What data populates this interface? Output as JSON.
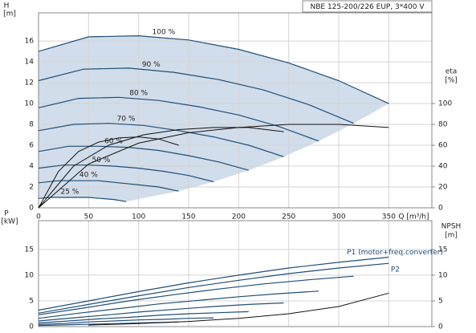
{
  "chart_data": [
    {
      "type": "line",
      "title": "NBE 125-200/226 EUP, 3*400 V",
      "xlabel": "Q [m³/h]",
      "ylabel": "H",
      "ylabel_unit": "[m]",
      "y2label": "eta",
      "y2label_unit": "[%]",
      "xlim": [
        0,
        393
      ],
      "ylim": [
        0,
        18.7
      ],
      "y2lim": [
        0,
        187
      ],
      "xticks": [
        0,
        50,
        100,
        150,
        200,
        250,
        300,
        350
      ],
      "yticks": [
        0,
        2,
        4,
        6,
        8,
        10,
        12,
        14,
        16
      ],
      "y2ticks": [
        0,
        20,
        40,
        60,
        80,
        100
      ],
      "grid": true,
      "range_color": "#c9d7e6",
      "series": [
        {
          "name": "100 %",
          "color": "#1f4e79",
          "x": [
            0,
            50,
            100,
            150,
            200,
            250,
            300,
            350
          ],
          "values": [
            15.0,
            16.4,
            16.5,
            16.1,
            15.2,
            13.9,
            12.2,
            10.0
          ]
        },
        {
          "name": "90 %",
          "color": "#1f4e79",
          "x": [
            0,
            45,
            90,
            135,
            180,
            225,
            270,
            315
          ],
          "values": [
            12.2,
            13.3,
            13.4,
            13.0,
            12.3,
            11.3,
            9.9,
            8.1
          ]
        },
        {
          "name": "80 %",
          "color": "#1f4e79",
          "x": [
            0,
            40,
            80,
            120,
            160,
            200,
            240,
            280
          ],
          "values": [
            9.6,
            10.5,
            10.6,
            10.3,
            9.7,
            8.9,
            7.8,
            6.4
          ]
        },
        {
          "name": "70 %",
          "color": "#1f4e79",
          "x": [
            0,
            35,
            70,
            105,
            140,
            175,
            210,
            245
          ],
          "values": [
            7.4,
            8.0,
            8.1,
            7.9,
            7.4,
            6.8,
            6.0,
            4.9
          ]
        },
        {
          "name": "60 %",
          "color": "#1f4e79",
          "x": [
            0,
            30,
            60,
            90,
            120,
            150,
            180,
            210
          ],
          "values": [
            5.4,
            5.9,
            5.9,
            5.8,
            5.5,
            5.0,
            4.4,
            3.6
          ]
        },
        {
          "name": "50 %",
          "color": "#1f4e79",
          "x": [
            0,
            25,
            50,
            75,
            100,
            125,
            150,
            175
          ],
          "values": [
            3.8,
            4.1,
            4.1,
            4.0,
            3.8,
            3.5,
            3.1,
            2.5
          ]
        },
        {
          "name": "40 %",
          "color": "#1f4e79",
          "x": [
            0,
            20,
            40,
            60,
            80,
            100,
            120,
            140
          ],
          "values": [
            2.4,
            2.6,
            2.6,
            2.6,
            2.4,
            2.2,
            2.0,
            1.6
          ]
        },
        {
          "name": "25 %",
          "color": "#1f4e79",
          "x": [
            0,
            12.5,
            25,
            37.5,
            50,
            62.5,
            75,
            87.5
          ],
          "values": [
            0.9,
            1.0,
            1.0,
            1.0,
            1.0,
            0.9,
            0.8,
            0.6
          ]
        },
        {
          "color": "#111111",
          "axis": "y2",
          "x": [
            0,
            50,
            100,
            150,
            200,
            250,
            300,
            350
          ],
          "values": [
            0,
            42,
            62,
            72,
            77,
            80,
            80,
            77
          ]
        },
        {
          "color": "#111111",
          "axis": "y2",
          "x": [
            0,
            35,
            70,
            105,
            140,
            175,
            210,
            245
          ],
          "values": [
            0,
            40,
            60,
            70,
            75,
            77,
            77,
            73
          ]
        },
        {
          "color": "#111111",
          "axis": "y2",
          "x": [
            0,
            20,
            40,
            60,
            80,
            100,
            120,
            140
          ],
          "values": [
            0,
            35,
            54,
            63,
            67,
            68,
            66,
            60
          ]
        }
      ]
    },
    {
      "type": "line",
      "ylabel": "P",
      "ylabel_unit": "[kW]",
      "y2label": "NPSH",
      "y2label_unit": "[m]",
      "xlim": [
        0,
        393
      ],
      "ylim": [
        0,
        20.6
      ],
      "y2lim": [
        0,
        20.6
      ],
      "xticks": [
        0,
        50,
        100,
        150,
        200,
        250,
        300,
        350
      ],
      "yticks": [
        0,
        5,
        10,
        15
      ],
      "y2ticks": [
        0,
        5,
        10,
        15
      ],
      "grid": true,
      "series": [
        {
          "name": "P1 (motor+freq.converter)",
          "color": "#1f4e79",
          "x": [
            0,
            50,
            100,
            150,
            200,
            250,
            300,
            350
          ],
          "values": [
            3.2,
            5.0,
            6.8,
            8.5,
            10.0,
            11.4,
            12.5,
            13.5
          ]
        },
        {
          "name": "P2",
          "color": "#1f4e79",
          "x": [
            0,
            50,
            100,
            150,
            200,
            250,
            300,
            350
          ],
          "values": [
            2.6,
            4.3,
            6.0,
            7.6,
            9.0,
            10.3,
            11.4,
            12.3
          ]
        },
        {
          "color": "#1f4e79",
          "x": [
            0,
            45,
            90,
            135,
            180,
            225,
            270,
            315
          ],
          "values": [
            2.3,
            3.6,
            5.0,
            6.2,
            7.3,
            8.3,
            9.1,
            9.8
          ]
        },
        {
          "color": "#1f4e79",
          "x": [
            0,
            40,
            80,
            120,
            160,
            200,
            240,
            280
          ],
          "values": [
            1.6,
            2.6,
            3.5,
            4.4,
            5.1,
            5.8,
            6.4,
            6.9
          ]
        },
        {
          "color": "#1f4e79",
          "x": [
            0,
            35,
            70,
            105,
            140,
            175,
            210,
            245
          ],
          "values": [
            1.1,
            1.7,
            2.3,
            2.9,
            3.4,
            3.9,
            4.3,
            4.6
          ]
        },
        {
          "color": "#1f4e79",
          "x": [
            0,
            30,
            60,
            90,
            120,
            150,
            180,
            210
          ],
          "values": [
            0.7,
            1.1,
            1.5,
            1.8,
            2.2,
            2.5,
            2.7,
            2.9
          ]
        },
        {
          "color": "#1f4e79",
          "x": [
            0,
            25,
            50,
            75,
            100,
            125,
            150,
            175
          ],
          "values": [
            0.4,
            0.6,
            0.9,
            1.1,
            1.3,
            1.4,
            1.6,
            1.7
          ]
        },
        {
          "color": "#1f4e79",
          "x": [
            0,
            20,
            40,
            60,
            80,
            100,
            120,
            140
          ],
          "values": [
            0.2,
            0.3,
            0.4,
            0.5,
            0.6,
            0.7,
            0.8,
            0.9
          ]
        },
        {
          "color": "#111111",
          "axis": "y2",
          "x": [
            50,
            100,
            150,
            200,
            250,
            300,
            350
          ],
          "values": [
            0.3,
            0.6,
            1.0,
            1.6,
            2.5,
            3.9,
            6.5
          ]
        }
      ]
    }
  ]
}
